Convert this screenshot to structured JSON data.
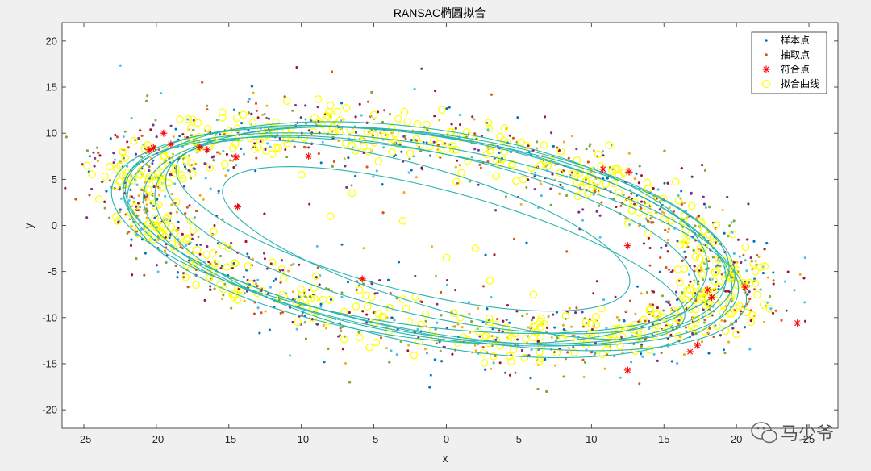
{
  "chart_data": {
    "type": "scatter",
    "title": "RANSAC椭圆拟合",
    "xlabel": "x",
    "ylabel": "y",
    "xlim": [
      -26.5,
      27
    ],
    "ylim": [
      -22,
      22
    ],
    "xticks": [
      -25,
      -20,
      -15,
      -10,
      -5,
      0,
      5,
      10,
      15,
      20,
      25
    ],
    "yticks": [
      -20,
      -15,
      -10,
      -5,
      0,
      5,
      10,
      15,
      20
    ],
    "xtick_labels": [
      "-25",
      "-20",
      "-15",
      "-10",
      "-5",
      "0",
      "5",
      "10",
      "15",
      "20",
      "25"
    ],
    "ytick_labels": [
      "-20",
      "-15",
      "-10",
      "-5",
      "0",
      "5",
      "10",
      "15",
      "20"
    ],
    "grid": false,
    "legend_position": "top-right",
    "legend": [
      {
        "label": "样本点",
        "marker": "dot",
        "color": "#0072bd"
      },
      {
        "label": "抽取点",
        "marker": "dot",
        "color": "#d95319"
      },
      {
        "label": "符合点",
        "marker": "asterisk",
        "color": "#ff0000"
      },
      {
        "label": "拟合曲线",
        "marker": "circle",
        "color": "#ffff00"
      }
    ],
    "scatter_colors": [
      "#0072bd",
      "#d95319",
      "#edb120",
      "#7e2f8e",
      "#77ac30",
      "#4dbeee",
      "#a2142f"
    ],
    "curve_color": "#2ab5b0",
    "fitted_ellipses": [
      {
        "cx": -1.5,
        "cy": -1.0,
        "a": 21.5,
        "b": 10.5,
        "angle_deg": -17
      },
      {
        "cx": -1.0,
        "cy": -1.5,
        "a": 22.0,
        "b": 9.8,
        "angle_deg": -18
      },
      {
        "cx": -0.5,
        "cy": -1.2,
        "a": 21.0,
        "b": 10.8,
        "angle_deg": -16
      },
      {
        "cx": -2.0,
        "cy": -0.8,
        "a": 20.5,
        "b": 11.2,
        "angle_deg": -15
      },
      {
        "cx": -0.8,
        "cy": -2.0,
        "a": 22.5,
        "b": 9.5,
        "angle_deg": -19
      },
      {
        "cx": -1.8,
        "cy": -0.5,
        "a": 21.8,
        "b": 10.2,
        "angle_deg": -14
      },
      {
        "cx": -0.2,
        "cy": -1.8,
        "a": 20.8,
        "b": 11.0,
        "angle_deg": -20
      },
      {
        "cx": -3.0,
        "cy": 0.0,
        "a": 17.0,
        "b": 6.5,
        "angle_deg": -25
      },
      {
        "cx": 0.5,
        "cy": -3.0,
        "a": 17.5,
        "b": 6.0,
        "angle_deg": -26
      },
      {
        "cx": -1.0,
        "cy": -1.0,
        "a": 19.5,
        "b": 8.5,
        "angle_deg": -22
      }
    ],
    "inlier_points": [
      [
        -20.5,
        8.2
      ],
      [
        -20.2,
        8.4
      ],
      [
        -19.5,
        10.0
      ],
      [
        -19.0,
        8.8
      ],
      [
        -17.0,
        8.5
      ],
      [
        -16.5,
        8.2
      ],
      [
        -14.5,
        7.4
      ],
      [
        -14.4,
        2.0
      ],
      [
        -9.5,
        7.5
      ],
      [
        -5.8,
        -5.8
      ],
      [
        10.8,
        6.1
      ],
      [
        12.5,
        -2.2
      ],
      [
        12.6,
        5.8
      ],
      [
        12.5,
        -15.7
      ],
      [
        16.8,
        -13.7
      ],
      [
        17.3,
        -13.0
      ],
      [
        18.0,
        -7.0
      ],
      [
        18.3,
        -7.8
      ],
      [
        20.6,
        -6.7
      ],
      [
        24.2,
        -10.6
      ]
    ],
    "fit_circle_points": [
      [
        -22.5,
        6.5
      ],
      [
        -21.5,
        1.0
      ],
      [
        -20.0,
        0.0
      ],
      [
        -18.5,
        -1.5
      ],
      [
        -17.5,
        11.5
      ],
      [
        -15.0,
        -2.5
      ],
      [
        -14.0,
        12.0
      ],
      [
        -12.0,
        -4.0
      ],
      [
        -11.0,
        13.5
      ],
      [
        -9.0,
        -5.5
      ],
      [
        -8.0,
        13.0
      ],
      [
        -6.0,
        -7.0
      ],
      [
        -5.0,
        12.0
      ],
      [
        -3.0,
        -8.0
      ],
      [
        -2.0,
        11.0
      ],
      [
        0.5,
        -9.5
      ],
      [
        1.0,
        9.5
      ],
      [
        3.0,
        -10.5
      ],
      [
        4.0,
        8.0
      ],
      [
        6.0,
        -11.0
      ],
      [
        7.0,
        6.5
      ],
      [
        9.0,
        -12.5
      ],
      [
        10.0,
        4.5
      ],
      [
        11.5,
        -12.0
      ],
      [
        13.0,
        2.5
      ],
      [
        14.0,
        -13.5
      ],
      [
        15.5,
        0.5
      ],
      [
        16.0,
        -12.0
      ],
      [
        17.5,
        -2.5
      ],
      [
        19.5,
        -4.5
      ],
      [
        20.0,
        -9.0
      ],
      [
        21.0,
        -10.5
      ],
      [
        -6.5,
        3.5
      ],
      [
        -3.0,
        0.5
      ],
      [
        0.0,
        -3.5
      ],
      [
        3.0,
        -6.0
      ],
      [
        -10.0,
        5.5
      ],
      [
        -8.0,
        1.0
      ],
      [
        2.0,
        -2.5
      ],
      [
        6.0,
        -7.5
      ]
    ],
    "sample_cloud": {
      "description": "random points scattered around ellipse ring",
      "count": 2600
    }
  },
  "watermark": {
    "text": "马少爷",
    "icon": "wechat-icon"
  }
}
